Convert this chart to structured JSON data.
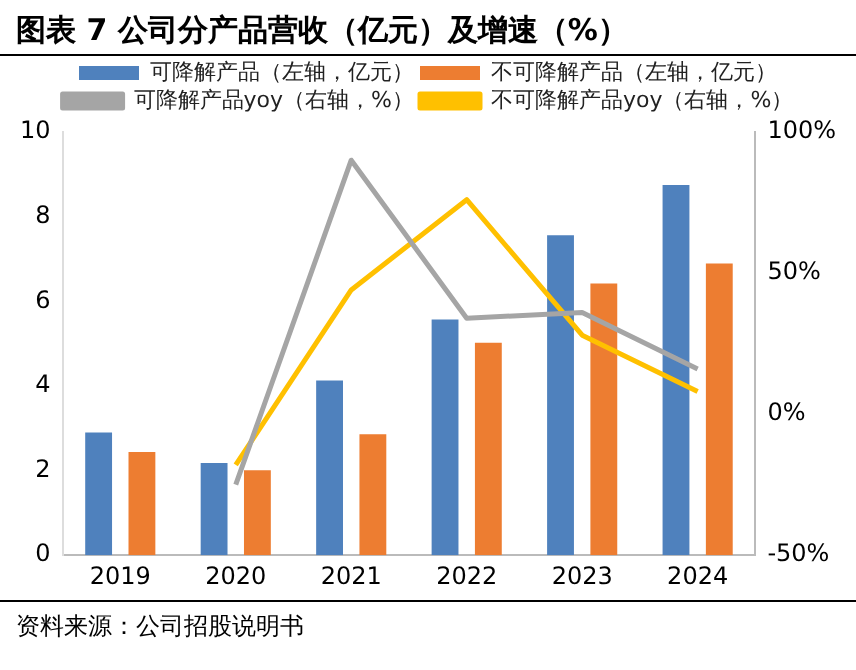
{
  "chart_data": {
    "type": "bar",
    "title": "图表 7 公司分产品营收（亿元）及增速（%）",
    "categories": [
      "2019",
      "2020",
      "2021",
      "2022",
      "2023",
      "2024"
    ],
    "series": [
      {
        "name": "可降解产品（左轴，亿元）",
        "color": "#4f81bd",
        "values": [
          2.9,
          2.18,
          4.13,
          5.57,
          7.56,
          8.75
        ]
      },
      {
        "name": "不可降解产品（左轴，亿元）",
        "color": "#ed7d31",
        "values": [
          2.44,
          2.01,
          2.86,
          5.02,
          6.42,
          6.89
        ]
      },
      {
        "name": "可降解产品yoy（右轴，%）",
        "type": "line",
        "axis": "y2",
        "color": "#a5a5a5",
        "values": [
          null,
          -25,
          90,
          34,
          36,
          16
        ]
      },
      {
        "name": "不可降解产品yoy（右轴，%）",
        "type": "line",
        "axis": "y2",
        "color": "#ffc000",
        "values": [
          null,
          -18,
          44,
          76,
          28,
          8
        ]
      }
    ],
    "ylim": [
      0,
      10
    ],
    "yticks": [
      0,
      2,
      4,
      6,
      8,
      10
    ],
    "y2lim": [
      -50,
      100
    ],
    "y2ticks": [
      {
        "value": -50,
        "label": "-50%"
      },
      {
        "value": 0,
        "label": "0%"
      },
      {
        "value": 50,
        "label": "50%"
      },
      {
        "value": 100,
        "label": "100%"
      }
    ],
    "grid": false,
    "legend": "top",
    "marker": "none",
    "line_style": "solid",
    "annotations": [
      "资料来源：公司招股说明书"
    ]
  }
}
